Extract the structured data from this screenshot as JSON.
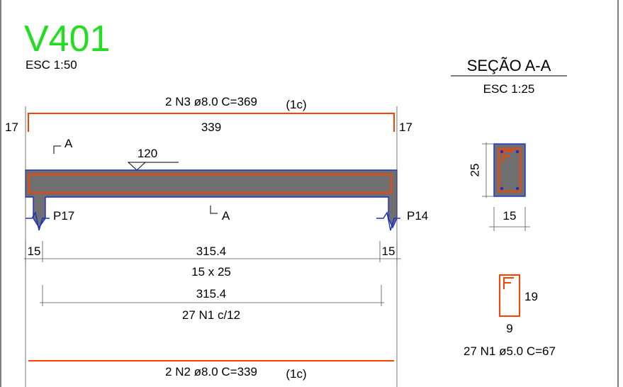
{
  "title": "V401",
  "title_scale": "ESC 1:50",
  "top_bar": {
    "label": "2 N3 ø8.0 C=369",
    "layer": "(1c)",
    "length": "339",
    "hook_left": "17",
    "hook_right": "17"
  },
  "section_marks": {
    "top": "A",
    "bottom": "A"
  },
  "load_label": "120",
  "supports": {
    "left": "P17",
    "right": "P14"
  },
  "dimensions": {
    "support_left": "15",
    "span": "315.4",
    "support_right": "15",
    "cross_section": "15 x 25",
    "stirrup_span": "315.4",
    "stirrup_spacing": "27 N1 c/12"
  },
  "bottom_bar": {
    "label": "2 N2 ø8.0 C=339",
    "layer": "(1c)"
  },
  "section": {
    "title": "SEÇÃO A-A",
    "scale": "ESC 1:25",
    "height": "25",
    "width": "15"
  },
  "stirrup": {
    "height": "19",
    "width": "9",
    "label": "27 N1 ø5.0 C=67"
  },
  "colors": {
    "title": "#22dd22",
    "rebar": "#ff4000",
    "outline": "#1c2ec6",
    "concrete": "#6f6f6f"
  }
}
